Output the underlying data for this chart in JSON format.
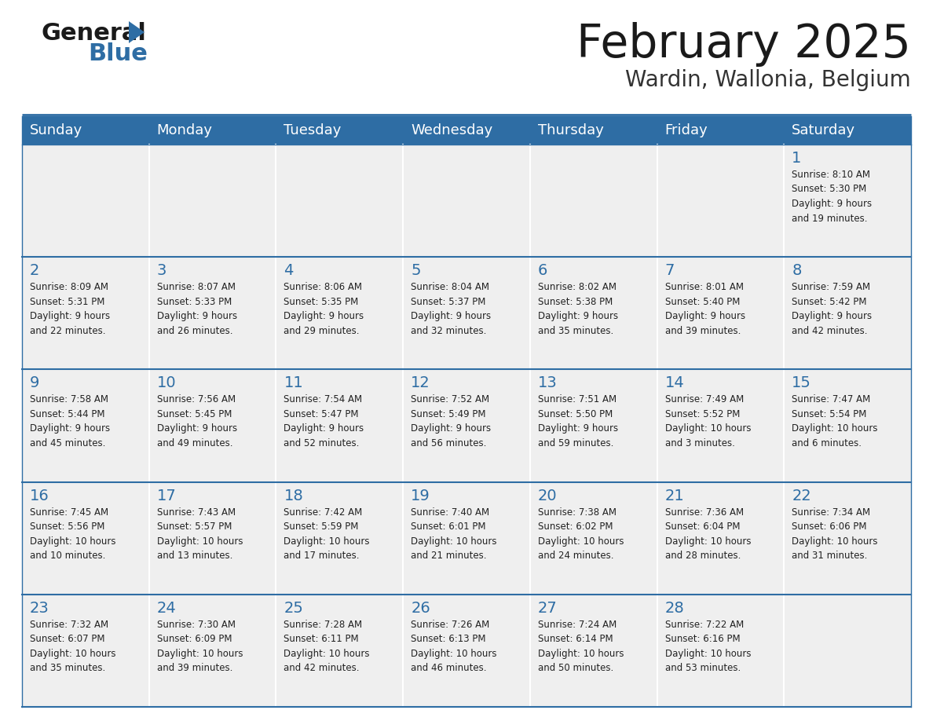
{
  "title": "February 2025",
  "subtitle": "Wardin, Wallonia, Belgium",
  "days_of_week": [
    "Sunday",
    "Monday",
    "Tuesday",
    "Wednesday",
    "Thursday",
    "Friday",
    "Saturday"
  ],
  "header_bg": "#2E6DA4",
  "header_text": "#FFFFFF",
  "cell_bg": "#EFEFEF",
  "cell_bg_empty_row0": "#EFEFEF",
  "border_color": "#2E6DA4",
  "row_divider_color": "#2E6DA4",
  "day_number_color": "#2E6DA4",
  "info_text_color": "#222222",
  "title_color": "#1a1a1a",
  "subtitle_color": "#333333",
  "logo_general_color": "#1a1a1a",
  "logo_blue_color": "#2E6DA4",
  "calendar_data": [
    [
      {
        "day": null,
        "info": ""
      },
      {
        "day": null,
        "info": ""
      },
      {
        "day": null,
        "info": ""
      },
      {
        "day": null,
        "info": ""
      },
      {
        "day": null,
        "info": ""
      },
      {
        "day": null,
        "info": ""
      },
      {
        "day": 1,
        "info": "Sunrise: 8:10 AM\nSunset: 5:30 PM\nDaylight: 9 hours\nand 19 minutes."
      }
    ],
    [
      {
        "day": 2,
        "info": "Sunrise: 8:09 AM\nSunset: 5:31 PM\nDaylight: 9 hours\nand 22 minutes."
      },
      {
        "day": 3,
        "info": "Sunrise: 8:07 AM\nSunset: 5:33 PM\nDaylight: 9 hours\nand 26 minutes."
      },
      {
        "day": 4,
        "info": "Sunrise: 8:06 AM\nSunset: 5:35 PM\nDaylight: 9 hours\nand 29 minutes."
      },
      {
        "day": 5,
        "info": "Sunrise: 8:04 AM\nSunset: 5:37 PM\nDaylight: 9 hours\nand 32 minutes."
      },
      {
        "day": 6,
        "info": "Sunrise: 8:02 AM\nSunset: 5:38 PM\nDaylight: 9 hours\nand 35 minutes."
      },
      {
        "day": 7,
        "info": "Sunrise: 8:01 AM\nSunset: 5:40 PM\nDaylight: 9 hours\nand 39 minutes."
      },
      {
        "day": 8,
        "info": "Sunrise: 7:59 AM\nSunset: 5:42 PM\nDaylight: 9 hours\nand 42 minutes."
      }
    ],
    [
      {
        "day": 9,
        "info": "Sunrise: 7:58 AM\nSunset: 5:44 PM\nDaylight: 9 hours\nand 45 minutes."
      },
      {
        "day": 10,
        "info": "Sunrise: 7:56 AM\nSunset: 5:45 PM\nDaylight: 9 hours\nand 49 minutes."
      },
      {
        "day": 11,
        "info": "Sunrise: 7:54 AM\nSunset: 5:47 PM\nDaylight: 9 hours\nand 52 minutes."
      },
      {
        "day": 12,
        "info": "Sunrise: 7:52 AM\nSunset: 5:49 PM\nDaylight: 9 hours\nand 56 minutes."
      },
      {
        "day": 13,
        "info": "Sunrise: 7:51 AM\nSunset: 5:50 PM\nDaylight: 9 hours\nand 59 minutes."
      },
      {
        "day": 14,
        "info": "Sunrise: 7:49 AM\nSunset: 5:52 PM\nDaylight: 10 hours\nand 3 minutes."
      },
      {
        "day": 15,
        "info": "Sunrise: 7:47 AM\nSunset: 5:54 PM\nDaylight: 10 hours\nand 6 minutes."
      }
    ],
    [
      {
        "day": 16,
        "info": "Sunrise: 7:45 AM\nSunset: 5:56 PM\nDaylight: 10 hours\nand 10 minutes."
      },
      {
        "day": 17,
        "info": "Sunrise: 7:43 AM\nSunset: 5:57 PM\nDaylight: 10 hours\nand 13 minutes."
      },
      {
        "day": 18,
        "info": "Sunrise: 7:42 AM\nSunset: 5:59 PM\nDaylight: 10 hours\nand 17 minutes."
      },
      {
        "day": 19,
        "info": "Sunrise: 7:40 AM\nSunset: 6:01 PM\nDaylight: 10 hours\nand 21 minutes."
      },
      {
        "day": 20,
        "info": "Sunrise: 7:38 AM\nSunset: 6:02 PM\nDaylight: 10 hours\nand 24 minutes."
      },
      {
        "day": 21,
        "info": "Sunrise: 7:36 AM\nSunset: 6:04 PM\nDaylight: 10 hours\nand 28 minutes."
      },
      {
        "day": 22,
        "info": "Sunrise: 7:34 AM\nSunset: 6:06 PM\nDaylight: 10 hours\nand 31 minutes."
      }
    ],
    [
      {
        "day": 23,
        "info": "Sunrise: 7:32 AM\nSunset: 6:07 PM\nDaylight: 10 hours\nand 35 minutes."
      },
      {
        "day": 24,
        "info": "Sunrise: 7:30 AM\nSunset: 6:09 PM\nDaylight: 10 hours\nand 39 minutes."
      },
      {
        "day": 25,
        "info": "Sunrise: 7:28 AM\nSunset: 6:11 PM\nDaylight: 10 hours\nand 42 minutes."
      },
      {
        "day": 26,
        "info": "Sunrise: 7:26 AM\nSunset: 6:13 PM\nDaylight: 10 hours\nand 46 minutes."
      },
      {
        "day": 27,
        "info": "Sunrise: 7:24 AM\nSunset: 6:14 PM\nDaylight: 10 hours\nand 50 minutes."
      },
      {
        "day": 28,
        "info": "Sunrise: 7:22 AM\nSunset: 6:16 PM\nDaylight: 10 hours\nand 53 minutes."
      },
      {
        "day": null,
        "info": ""
      }
    ]
  ]
}
